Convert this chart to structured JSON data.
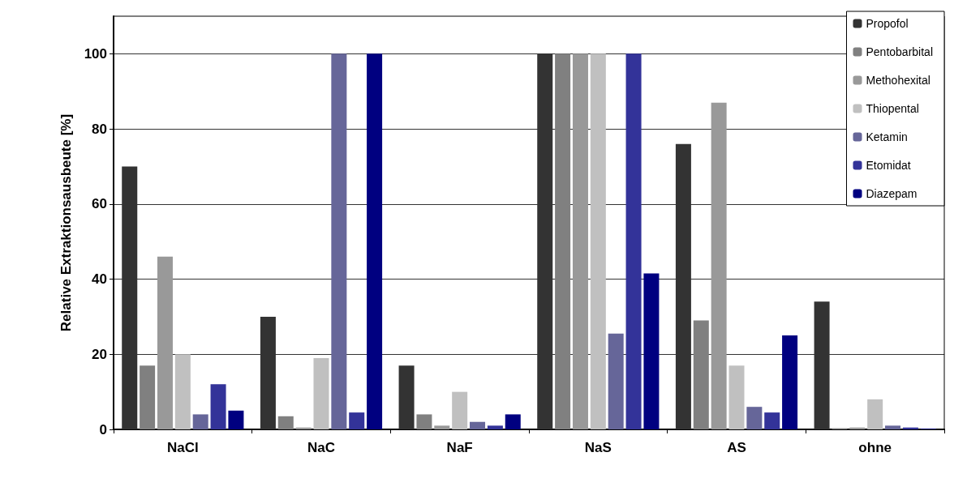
{
  "chart_data": {
    "type": "bar",
    "ylabel": "Relative Extraktionsausbeute [%]",
    "categories": [
      "NaCl",
      "NaC",
      "NaF",
      "NaS",
      "AS",
      "ohne"
    ],
    "series": [
      {
        "name": "Propofol",
        "color": "#333333",
        "values": [
          70,
          30,
          17,
          100,
          76,
          34
        ]
      },
      {
        "name": "Pentobarbital",
        "color": "#808080",
        "values": [
          17,
          3.5,
          4,
          100,
          29,
          0.3
        ]
      },
      {
        "name": "Methohexital",
        "color": "#999999",
        "values": [
          46,
          0.5,
          1,
          100,
          87,
          0.5
        ]
      },
      {
        "name": "Thiopental",
        "color": "#c0c0c0",
        "values": [
          20,
          19,
          10,
          100,
          17,
          8
        ]
      },
      {
        "name": "Ketamin",
        "color": "#666699",
        "values": [
          4,
          100,
          2,
          25.5,
          6,
          1
        ]
      },
      {
        "name": "Etomidat",
        "color": "#333399",
        "values": [
          12,
          4.5,
          1,
          100,
          4.5,
          0.5
        ]
      },
      {
        "name": "Diazepam",
        "color": "#000080",
        "values": [
          5,
          100,
          4,
          41.5,
          25,
          0.2
        ]
      }
    ],
    "ylim": [
      0,
      110
    ],
    "yticks": [
      0,
      20,
      40,
      60,
      80,
      100
    ],
    "grid": "y",
    "legend": "top right"
  }
}
